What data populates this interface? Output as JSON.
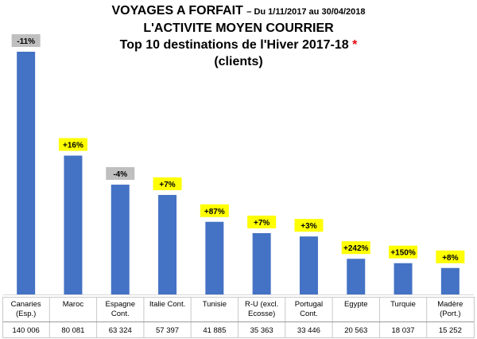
{
  "title": {
    "line1_main": "VOYAGES A FORFAIT",
    "line1_sub": "– Du 1/11/2017 au 30/04/2018",
    "line2": "L'ACTIVITE MOYEN COURRIER",
    "line3": "Top 10 destinations de l'Hiver 2017-18",
    "line3_mark": "*",
    "line4": "(clients)"
  },
  "colors": {
    "bar": "#4472c4",
    "badge_positive": "#ffff00",
    "badge_negative": "#bfbfbf",
    "asterisk": "#e30613"
  },
  "chart_data": {
    "type": "bar",
    "categories": [
      [
        "Canaries",
        "(Esp.)"
      ],
      [
        "Maroc"
      ],
      [
        "Espagne",
        "Cont."
      ],
      [
        "Italie Cont."
      ],
      [
        "Tunisie"
      ],
      [
        "R-U (excl.",
        "Ecosse)"
      ],
      [
        "Portugal",
        "Cont."
      ],
      [
        "Egypte"
      ],
      [
        "Turquie"
      ],
      [
        "Madère",
        "(Port.)"
      ]
    ],
    "values": [
      140006,
      80081,
      63324,
      57397,
      41885,
      35363,
      33446,
      20563,
      18037,
      15252
    ],
    "value_labels": [
      "140 006",
      "80 081",
      "63 324",
      "57 397",
      "41 885",
      "35 363",
      "33 446",
      "20 563",
      "18 037",
      "15 252"
    ],
    "changes": [
      "-11%",
      "+16%",
      "-4%",
      "+7%",
      "+87%",
      "+7%",
      "+3%",
      "+242%",
      "+150%",
      "+8%"
    ],
    "change_sign": [
      "negative",
      "positive",
      "negative",
      "positive",
      "positive",
      "positive",
      "positive",
      "positive",
      "positive",
      "positive"
    ],
    "ylim": [
      0,
      140006
    ],
    "grid": false,
    "legend": "none"
  }
}
